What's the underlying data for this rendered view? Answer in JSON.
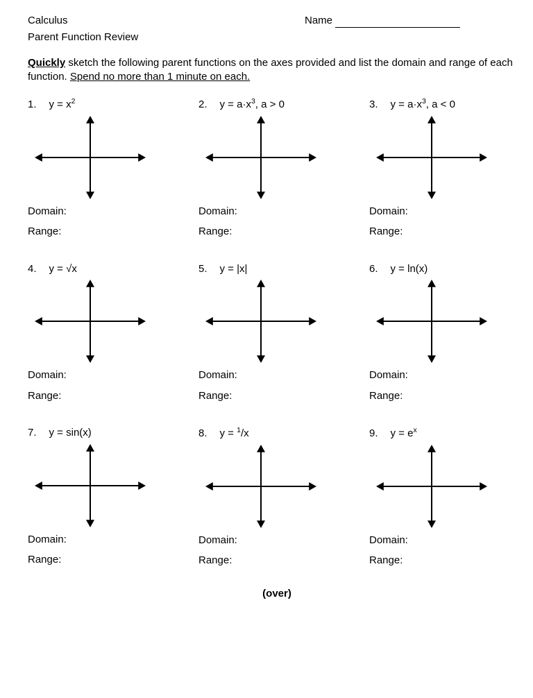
{
  "header": {
    "course": "Calculus",
    "subtitle": "Parent Function Review",
    "name_label": "Name"
  },
  "instructions": {
    "lead_word": "Quickly",
    "text_mid": " sketch the following parent functions on the axes provided and list the domain and range of each function. ",
    "underlined_tail": "Spend no more than 1 minute on each."
  },
  "labels": {
    "domain": "Domain:",
    "range": "Range:"
  },
  "problems": [
    {
      "num": "1.",
      "equation_html": "y = x<sup>2</sup>"
    },
    {
      "num": "2.",
      "equation_html": "y = a·x<sup>3</sup>, a > 0"
    },
    {
      "num": "3.",
      "equation_html": "y = a·x<sup>3</sup>, a < 0"
    },
    {
      "num": "4.",
      "equation_html": "y = √x"
    },
    {
      "num": "5.",
      "equation_html": "y = |x|"
    },
    {
      "num": "6.",
      "equation_html": "y = ln(x)"
    },
    {
      "num": "7.",
      "equation_html": "y = sin(x)"
    },
    {
      "num": "8.",
      "equation_html": "y = <sup>1</sup>/x"
    },
    {
      "num": "9.",
      "equation_html": "y = e<sup>x</sup>"
    }
  ],
  "axes": {
    "width": 160,
    "height": 120,
    "stroke": "#000000",
    "stroke_width": 2,
    "arrow_size": 6
  },
  "footer": "(over)"
}
